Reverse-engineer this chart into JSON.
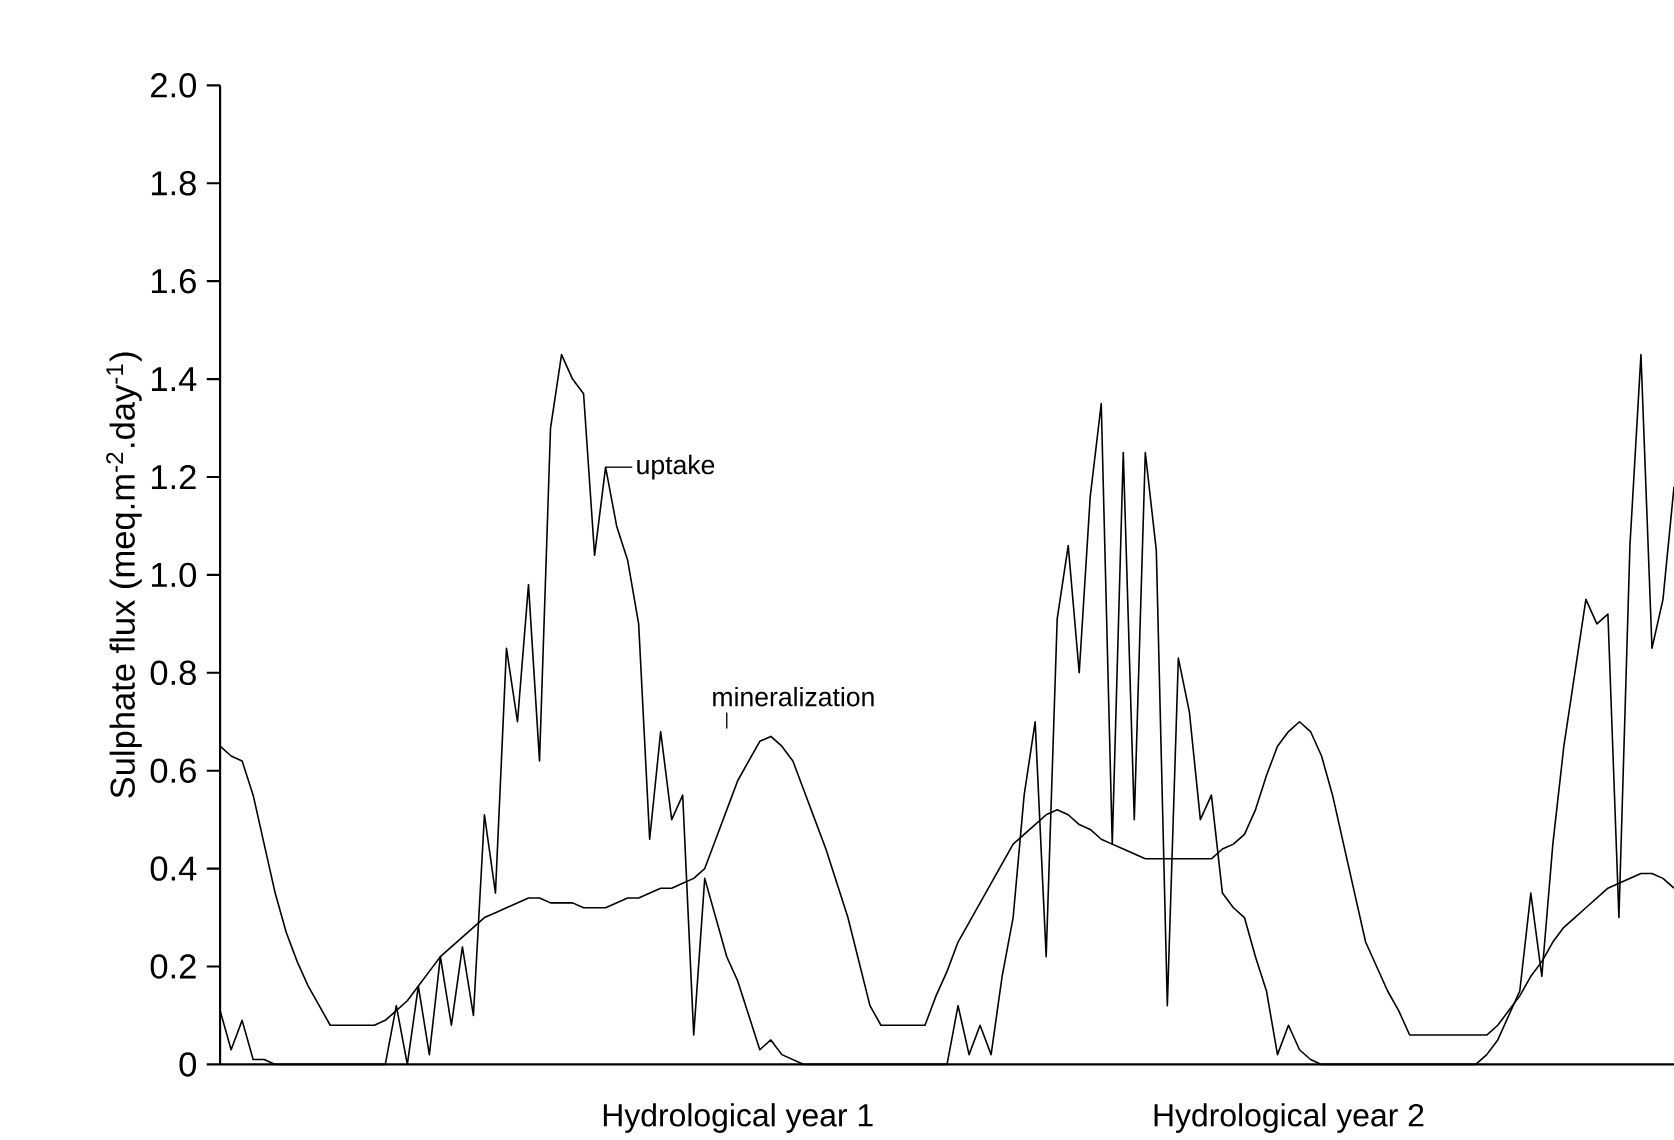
{
  "chart_data": {
    "type": "line",
    "ylabel": "Sulphate flux (meq.m$^{-2}$.day$^{-1}$)",
    "categories": [
      null,
      null,
      null,
      null,
      null,
      null,
      null,
      null,
      null,
      null,
      null,
      null,
      null,
      null,
      null,
      null,
      null,
      null,
      null,
      null,
      null,
      null,
      null,
      null,
      null,
      null,
      null,
      null,
      null,
      null,
      null,
      null,
      null,
      null,
      null,
      null,
      null,
      null,
      null,
      null,
      null,
      null,
      null,
      null,
      null,
      null,
      null,
      "Hydrological year 1",
      null,
      null,
      null,
      null,
      null,
      null,
      null,
      null,
      null,
      null,
      null,
      null,
      null,
      null,
      null,
      null,
      null,
      null,
      null,
      null,
      null,
      null,
      null,
      null,
      null,
      null,
      null,
      null,
      null,
      null,
      null,
      null,
      null,
      null,
      null,
      null,
      null,
      null,
      null,
      null,
      null,
      null,
      null,
      null,
      null,
      null,
      null,
      null,
      null,
      "Hydrological year 2",
      null,
      null,
      null,
      null,
      null,
      null,
      null,
      null,
      null,
      null,
      null,
      null,
      null,
      null,
      null,
      null,
      null,
      null,
      null,
      null,
      null,
      null,
      null,
      null,
      null,
      null,
      null,
      null,
      null,
      null,
      null,
      null,
      null,
      null,
      null
    ],
    "ylim": [
      0,
      2.0
    ],
    "yticks": [
      0,
      0.2,
      0.4,
      0.6,
      0.8,
      {
        "value": 1,
        "label": "1.0"
      },
      1.2,
      1.4,
      1.6,
      1.8,
      {
        "value": 2,
        "label": "2.0"
      }
    ],
    "series": [
      {
        "name": "uptake",
        "color": "#000000",
        "values": [
          0.11,
          0.03,
          0.09,
          0.01,
          0.01,
          0.0,
          0.0,
          0.0,
          0.0,
          0.0,
          0,
          0,
          0,
          0,
          0,
          0,
          0.12,
          0.0,
          0.16,
          0.02,
          0.22,
          0.08,
          0.24,
          0.1,
          0.51,
          0.35,
          0.85,
          0.7,
          0.98,
          0.62,
          1.3,
          1.45,
          1.4,
          1.37,
          1.04,
          1.22,
          1.1,
          1.03,
          0.9,
          0.46,
          0.68,
          0.5,
          0.55,
          0.06,
          0.38,
          0.3,
          0.22,
          0.17,
          0.1,
          0.03,
          0.05,
          0.02,
          0.01,
          0,
          0,
          0,
          0,
          0,
          0,
          0,
          0,
          0,
          0,
          0,
          0,
          0,
          0,
          0.12,
          0.02,
          0.08,
          0.02,
          0.18,
          0.3,
          0.55,
          0.7,
          0.22,
          0.91,
          1.06,
          0.8,
          1.16,
          1.35,
          0.45,
          1.25,
          0.5,
          1.25,
          1.05,
          0.12,
          0.83,
          0.72,
          0.5,
          0.55,
          0.35,
          0.32,
          0.3,
          0.22,
          0.15,
          0.02,
          0.08,
          0.03,
          0.01,
          0,
          0,
          0,
          0,
          0,
          0,
          0,
          0,
          0,
          0,
          0,
          0,
          0,
          0,
          0,
          0.02,
          0.05,
          0.1,
          0.15,
          0.35,
          0.18,
          0.45,
          0.65,
          0.8,
          0.95,
          0.9,
          0.92,
          0.3,
          1.06,
          1.45,
          0.85,
          0.95,
          1.18
        ]
      },
      {
        "name": "mineralization",
        "color": "#000000",
        "values": [
          0.65,
          0.63,
          0.62,
          0.55,
          0.45,
          0.35,
          0.27,
          0.21,
          0.16,
          0.12,
          0.08,
          0.08,
          0.08,
          0.08,
          0.08,
          0.09,
          0.11,
          0.13,
          0.16,
          0.19,
          0.22,
          0.24,
          0.26,
          0.28,
          0.3,
          0.31,
          0.32,
          0.33,
          0.34,
          0.34,
          0.33,
          0.33,
          0.33,
          0.32,
          0.32,
          0.32,
          0.33,
          0.34,
          0.34,
          0.35,
          0.36,
          0.36,
          0.37,
          0.38,
          0.4,
          0.46,
          0.52,
          0.58,
          0.62,
          0.66,
          0.67,
          0.65,
          0.62,
          0.56,
          0.5,
          0.44,
          0.37,
          0.3,
          0.21,
          0.12,
          0.08,
          0.08,
          0.08,
          0.08,
          0.08,
          0.14,
          0.19,
          0.25,
          0.29,
          0.33,
          0.37,
          0.41,
          0.45,
          0.47,
          0.49,
          0.51,
          0.52,
          0.51,
          0.49,
          0.48,
          0.46,
          0.45,
          0.44,
          0.43,
          0.42,
          0.42,
          0.42,
          0.42,
          0.42,
          0.42,
          0.42,
          0.44,
          0.45,
          0.47,
          0.52,
          0.59,
          0.65,
          0.68,
          0.7,
          0.68,
          0.63,
          0.55,
          0.45,
          0.35,
          0.25,
          0.2,
          0.15,
          0.11,
          0.06,
          0.06,
          0.06,
          0.06,
          0.06,
          0.06,
          0.06,
          0.06,
          0.08,
          0.11,
          0.14,
          0.18,
          0.21,
          0.25,
          0.28,
          0.3,
          0.32,
          0.34,
          0.36,
          0.37,
          0.38,
          0.39,
          0.39,
          0.38,
          0.36
        ]
      }
    ]
  }
}
